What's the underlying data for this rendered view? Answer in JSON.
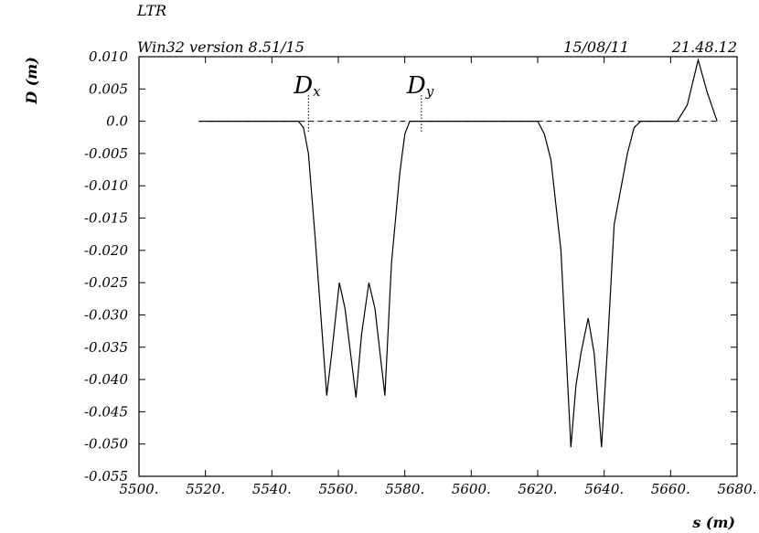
{
  "header": {
    "program": "LTR",
    "version": "Win32 version 8.51/15",
    "date": "15/08/11",
    "time": "21.48.12"
  },
  "chart_data": {
    "type": "line",
    "xlabel": "s (m)",
    "ylabel": "D (m)",
    "xlim": [
      5500,
      5680
    ],
    "ylim": [
      -0.055,
      0.01
    ],
    "x_ticks": [
      "5500.",
      "5520.",
      "5540.",
      "5560.",
      "5580.",
      "5600.",
      "5620.",
      "5640.",
      "5660.",
      "5680."
    ],
    "y_ticks": [
      "0.010",
      "0.005",
      "0.0",
      "-0.005",
      "-0.010",
      "-0.015",
      "-0.020",
      "-0.025",
      "-0.030",
      "-0.035",
      "-0.040",
      "-0.045",
      "-0.050",
      "-0.055"
    ],
    "series": [
      {
        "x": [
          5518,
          5548,
          5549.5,
          5551,
          5553,
          5556.5,
          5558,
          5560.3,
          5562,
          5565.3,
          5567,
          5569.2,
          5571,
          5574,
          5576,
          5578.5,
          5580,
          5581.5,
          5620,
          5622,
          5624,
          5627,
          5630,
          5631.5,
          5633,
          5635.2,
          5637,
          5639.2,
          5641,
          5643,
          5647,
          5649,
          5651,
          5662,
          5665,
          5668.3,
          5671,
          5674
        ],
        "y": [
          0.0,
          0.0,
          -0.001,
          -0.005,
          -0.018,
          -0.0425,
          -0.036,
          -0.025,
          -0.029,
          -0.0428,
          -0.033,
          -0.025,
          -0.029,
          -0.0425,
          -0.022,
          -0.008,
          -0.002,
          0.0,
          0.0,
          -0.002,
          -0.006,
          -0.02,
          -0.0505,
          -0.041,
          -0.036,
          -0.0305,
          -0.036,
          -0.0505,
          -0.035,
          -0.016,
          -0.005,
          -0.001,
          0.0,
          0.0,
          0.0025,
          0.0095,
          0.0045,
          0.0
        ]
      }
    ],
    "reference_line": {
      "y": 0.0,
      "x_from": 5518,
      "x_to": 5675,
      "style": "dashed"
    },
    "annotations": [
      {
        "base": "D",
        "sub": "x",
        "x": 5551
      },
      {
        "base": "D",
        "sub": "y",
        "x": 5585
      }
    ],
    "grid": false
  }
}
